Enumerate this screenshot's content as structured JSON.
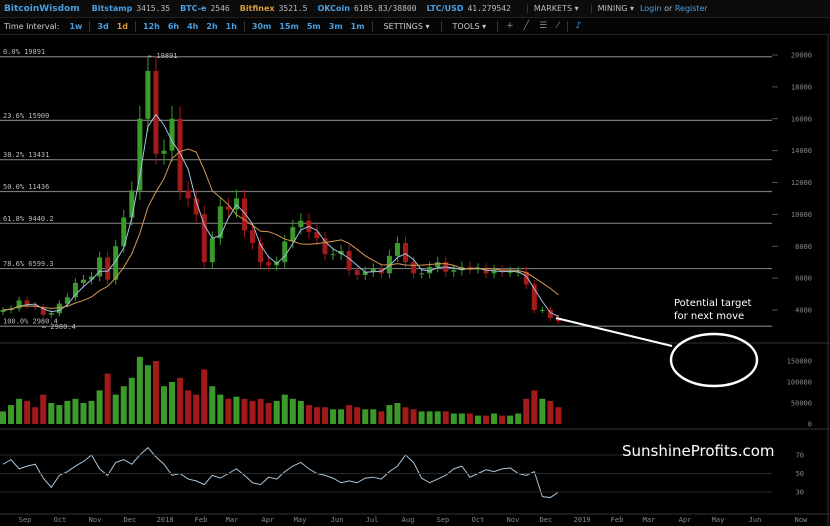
{
  "topbar": {
    "brand": "BitcoinWisdom",
    "tickers": [
      {
        "name": "Bitstamp",
        "value": "3415.35"
      },
      {
        "name": "BTC-e",
        "value": "2546"
      },
      {
        "name": "Bitfinex",
        "value": "3521.5"
      },
      {
        "name": "OKCoin",
        "value": "6185.83/38800"
      },
      {
        "name": "LTC/USD",
        "value": "41.279542"
      }
    ],
    "markets": "MARKETS ▾",
    "mining": "MINING ▾",
    "login": "Login",
    "or": " or ",
    "register": "Register"
  },
  "toolbar": {
    "label": "Time Interval:",
    "intervals": [
      "1w",
      "3d",
      "1d",
      "12h",
      "6h",
      "4h",
      "2h",
      "1h",
      "30m",
      "15m",
      "5m",
      "3m",
      "1m"
    ],
    "active": "1d",
    "settings": "SETTINGS ▾",
    "tools": "TOOLS ▾",
    "icons": [
      "crosshair-icon",
      "line-draw-icon",
      "layout-icon",
      "fib-tool-icon",
      "alert-bell-icon"
    ]
  },
  "annotation": {
    "line1": "Potential target",
    "line2": "for next move",
    "watermark": "SunshineProfits.com"
  },
  "chart_data": {
    "type": "candlestick",
    "interval": "weekly approximation",
    "start_week": "2017-08-13",
    "closes": [
      4000,
      4100,
      4600,
      4300,
      4200,
      3700,
      3800,
      4400,
      4800,
      5700,
      5900,
      6100,
      7300,
      5900,
      8000,
      9800,
      11500,
      16000,
      19000,
      13800,
      14000,
      16000,
      11500,
      11000,
      10000,
      7000,
      8500,
      10500,
      10300,
      11000,
      9000,
      8200,
      7000,
      6800,
      7000,
      8300,
      9200,
      9600,
      8900,
      8500,
      7500,
      7500,
      7700,
      6500,
      6200,
      6400,
      6600,
      6300,
      7400,
      8200,
      7000,
      6300,
      6300,
      6700,
      7000,
      6400,
      6500,
      6700,
      6600,
      6600,
      6300,
      6500,
      6400,
      6400,
      6400,
      5600,
      4000,
      4000,
      3500,
      3300
    ],
    "volumes": [
      30000,
      45000,
      60000,
      55000,
      40000,
      70000,
      50000,
      45000,
      55000,
      60000,
      50000,
      55000,
      80000,
      120000,
      70000,
      90000,
      110000,
      160000,
      140000,
      150000,
      90000,
      100000,
      110000,
      80000,
      70000,
      130000,
      90000,
      70000,
      60000,
      65000,
      60000,
      55000,
      60000,
      50000,
      55000,
      70000,
      60000,
      55000,
      45000,
      40000,
      40000,
      35000,
      35000,
      45000,
      40000,
      35000,
      35000,
      30000,
      45000,
      50000,
      40000,
      35000,
      30000,
      30000,
      30000,
      30000,
      25000,
      25000,
      25000,
      20000,
      20000,
      25000,
      20000,
      20000,
      25000,
      60000,
      80000,
      60000,
      55000,
      40000
    ],
    "rsi": [
      60,
      65,
      55,
      58,
      60,
      45,
      35,
      48,
      52,
      58,
      63,
      70,
      55,
      48,
      62,
      65,
      60,
      70,
      78,
      68,
      60,
      48,
      50,
      44,
      42,
      38,
      48,
      45,
      50,
      55,
      48,
      40,
      38,
      46,
      44,
      52,
      58,
      62,
      55,
      50,
      48,
      45,
      40,
      42,
      40,
      45,
      46,
      44,
      52,
      58,
      70,
      62,
      45,
      40,
      44,
      48,
      55,
      58,
      46,
      50,
      54,
      52,
      55,
      56,
      50,
      48,
      52,
      25,
      24,
      30
    ],
    "price_axis": {
      "ticks": [
        4000,
        6000,
        8000,
        10000,
        12000,
        14000,
        16000,
        18000,
        20000
      ],
      "range": [
        2000,
        20500
      ]
    },
    "volume_axis": {
      "ticks": [
        0,
        50000,
        100000,
        150000
      ]
    },
    "rsi_axis": {
      "ticks": [
        30,
        50,
        70
      ]
    },
    "x_ticks": [
      "Sep",
      "Oct",
      "Nov",
      "Dec",
      "2018",
      "Feb",
      "Mar",
      "Apr",
      "May",
      "Jun",
      "Jul",
      "Aug",
      "Sep",
      "Oct",
      "Nov",
      "Dec",
      "2019",
      "Feb",
      "Mar",
      "Apr",
      "May",
      "Jun",
      "Now"
    ],
    "fib_levels": [
      {
        "label": "0.0% 19891",
        "value": 19891
      },
      {
        "label": "23.6% 15900",
        "value": 15900
      },
      {
        "label": "38.2% 13431",
        "value": 13431
      },
      {
        "label": "50.0% 11436",
        "value": 11436
      },
      {
        "label": "61.8% 9440.2",
        "value": 9440.2
      },
      {
        "label": "78.6% 6599.3",
        "value": 6599.3
      },
      {
        "label": "100.0% 2980.4",
        "value": 2980.4
      }
    ],
    "high_marker": "← 19891",
    "low_marker": "← 2980.4",
    "colors": {
      "up": "#3c9a2c",
      "down": "#a21a1a",
      "ma_short": "#9fc4dc",
      "ma_long": "#d29a52",
      "fib": "#777777",
      "rsi": "#a9c6dc"
    }
  }
}
